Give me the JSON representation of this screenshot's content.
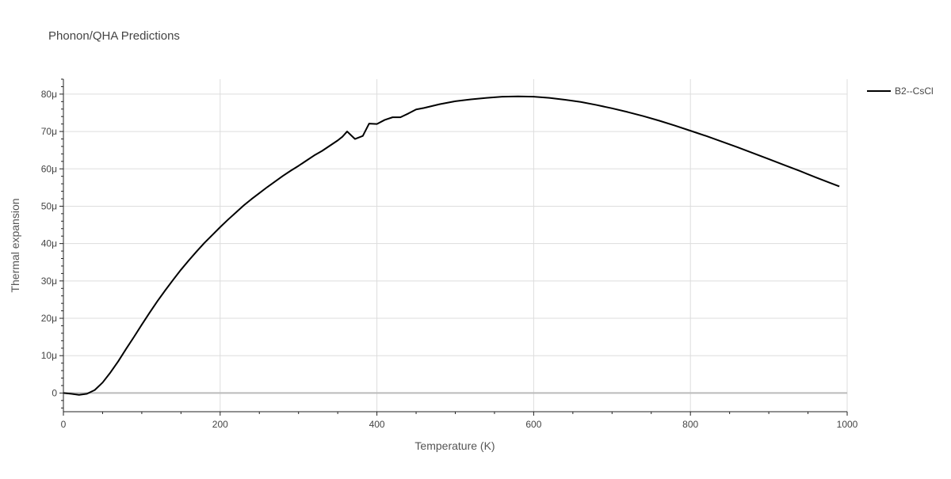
{
  "chart_data": {
    "type": "line",
    "title": "Phonon/QHA Predictions",
    "xlabel": "Temperature (K)",
    "ylabel": "Thermal expansion",
    "xlim": [
      0,
      1000
    ],
    "ylim": [
      -5e-06,
      8.4e-05
    ],
    "x_ticks": [
      {
        "value": 0,
        "label": "0"
      },
      {
        "value": 200,
        "label": "200"
      },
      {
        "value": 400,
        "label": "400"
      },
      {
        "value": 600,
        "label": "600"
      },
      {
        "value": 800,
        "label": "800"
      },
      {
        "value": 1000,
        "label": "1000"
      }
    ],
    "y_ticks": [
      {
        "value": 0,
        "label": "0"
      },
      {
        "value": 1e-05,
        "label": "10μ"
      },
      {
        "value": 2e-05,
        "label": "20μ"
      },
      {
        "value": 3e-05,
        "label": "30μ"
      },
      {
        "value": 4e-05,
        "label": "40μ"
      },
      {
        "value": 5e-05,
        "label": "50μ"
      },
      {
        "value": 6e-05,
        "label": "60μ"
      },
      {
        "value": 7e-05,
        "label": "70μ"
      },
      {
        "value": 8e-05,
        "label": "80μ"
      }
    ],
    "grid": true,
    "legend_position": "top-right",
    "series": [
      {
        "name": "B2--CsCl",
        "color": "#000000",
        "points": [
          [
            0,
            0
          ],
          [
            10,
            -2e-07
          ],
          [
            20,
            -5e-07
          ],
          [
            30,
            -2e-07
          ],
          [
            40,
            8e-07
          ],
          [
            50,
            2.8e-06
          ],
          [
            60,
            5.5e-06
          ],
          [
            70,
            8.5e-06
          ],
          [
            80,
            1.18e-05
          ],
          [
            90,
            1.5e-05
          ],
          [
            100,
            1.83e-05
          ],
          [
            110,
            2.15e-05
          ],
          [
            120,
            2.46e-05
          ],
          [
            130,
            2.75e-05
          ],
          [
            140,
            3.03e-05
          ],
          [
            150,
            3.3e-05
          ],
          [
            160,
            3.55e-05
          ],
          [
            170,
            3.79e-05
          ],
          [
            180,
            4.02e-05
          ],
          [
            190,
            4.23e-05
          ],
          [
            200,
            4.44e-05
          ],
          [
            210,
            4.64e-05
          ],
          [
            220,
            4.83e-05
          ],
          [
            230,
            5.02e-05
          ],
          [
            240,
            5.19e-05
          ],
          [
            250,
            5.35e-05
          ],
          [
            260,
            5.51e-05
          ],
          [
            270,
            5.66e-05
          ],
          [
            280,
            5.81e-05
          ],
          [
            290,
            5.95e-05
          ],
          [
            300,
            6.08e-05
          ],
          [
            310,
            6.22e-05
          ],
          [
            320,
            6.36e-05
          ],
          [
            330,
            6.48e-05
          ],
          [
            340,
            6.62e-05
          ],
          [
            350,
            6.76e-05
          ],
          [
            356,
            6.86e-05
          ],
          [
            362,
            7e-05
          ],
          [
            368,
            6.88e-05
          ],
          [
            372,
            6.8e-05
          ],
          [
            382,
            6.88e-05
          ],
          [
            390,
            7.21e-05
          ],
          [
            400,
            7.2e-05
          ],
          [
            410,
            7.31e-05
          ],
          [
            420,
            7.38e-05
          ],
          [
            430,
            7.38e-05
          ],
          [
            440,
            7.48e-05
          ],
          [
            450,
            7.59e-05
          ],
          [
            460,
            7.63e-05
          ],
          [
            470,
            7.68e-05
          ],
          [
            480,
            7.73e-05
          ],
          [
            490,
            7.77e-05
          ],
          [
            500,
            7.81e-05
          ],
          [
            520,
            7.86e-05
          ],
          [
            540,
            7.9e-05
          ],
          [
            560,
            7.93e-05
          ],
          [
            580,
            7.94e-05
          ],
          [
            600,
            7.93e-05
          ],
          [
            620,
            7.9e-05
          ],
          [
            640,
            7.85e-05
          ],
          [
            660,
            7.79e-05
          ],
          [
            680,
            7.71e-05
          ],
          [
            700,
            7.62e-05
          ],
          [
            720,
            7.52e-05
          ],
          [
            740,
            7.41e-05
          ],
          [
            760,
            7.29e-05
          ],
          [
            780,
            7.16e-05
          ],
          [
            800,
            7.02e-05
          ],
          [
            820,
            6.88e-05
          ],
          [
            840,
            6.73e-05
          ],
          [
            860,
            6.58e-05
          ],
          [
            880,
            6.42e-05
          ],
          [
            900,
            6.26e-05
          ],
          [
            920,
            6.1e-05
          ],
          [
            940,
            5.94e-05
          ],
          [
            960,
            5.77e-05
          ],
          [
            980,
            5.61e-05
          ],
          [
            990,
            5.53e-05
          ]
        ]
      }
    ]
  }
}
